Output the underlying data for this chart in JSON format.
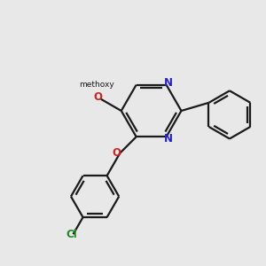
{
  "bg_color": "#e8e8e8",
  "bond_color": "#1a1a1a",
  "n_color": "#2222cc",
  "o_color": "#cc2222",
  "cl_color": "#228B22",
  "line_width": 1.6,
  "figsize": [
    3.0,
    3.0
  ],
  "dpi": 100,
  "xlim": [
    0,
    10
  ],
  "ylim": [
    0,
    10
  ]
}
